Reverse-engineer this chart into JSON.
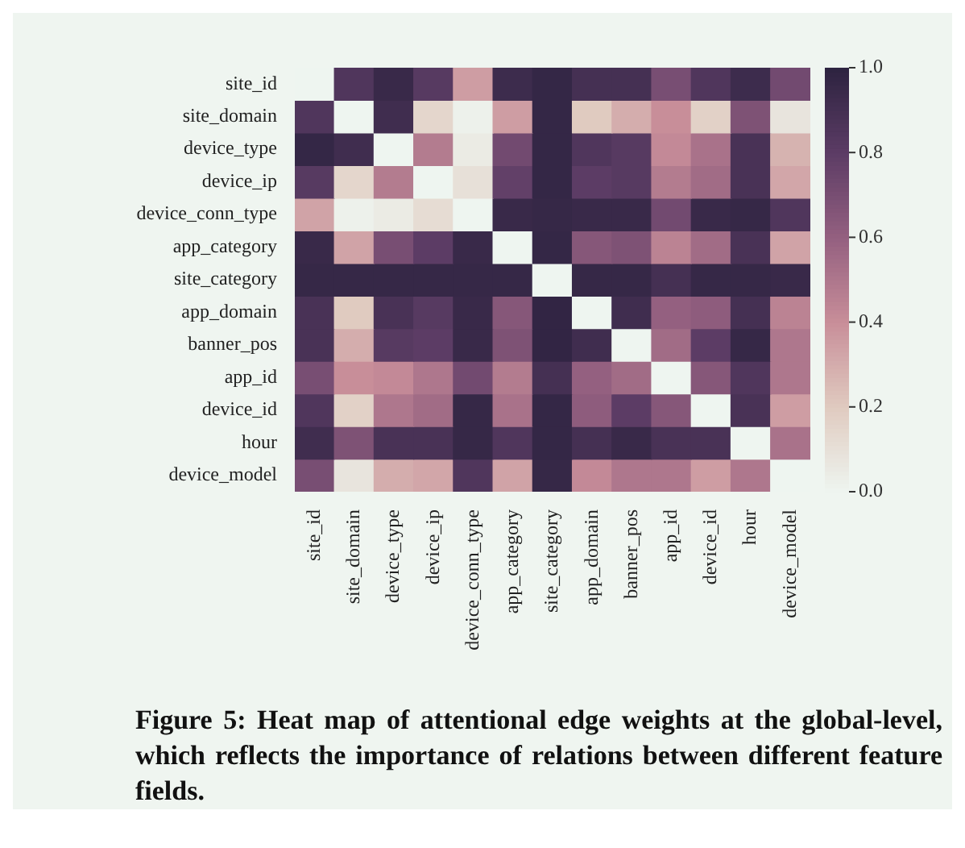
{
  "chart_data": {
    "type": "heatmap",
    "categories": [
      "site_id",
      "site_domain",
      "device_type",
      "device_ip",
      "device_conn_type",
      "app_category",
      "site_category",
      "app_domain",
      "banner_pos",
      "app_id",
      "device_id",
      "hour",
      "device_model"
    ],
    "y_categories": [
      "site_id",
      "site_domain",
      "device_type",
      "device_ip",
      "device_conn_type",
      "app_category",
      "site_category",
      "app_domain",
      "banner_pos",
      "app_id",
      "device_id",
      "hour",
      "device_model"
    ],
    "cells": [
      [
        0,
        0.85,
        0.95,
        0.82,
        0.35,
        0.93,
        0.97,
        0.9,
        0.9,
        0.7,
        0.85,
        0.93,
        0.72
      ],
      [
        0.85,
        0,
        0.92,
        0.15,
        0.02,
        0.35,
        0.97,
        0.2,
        0.3,
        0.4,
        0.17,
        0.68,
        0.08
      ],
      [
        0.97,
        0.92,
        0,
        0.48,
        0.05,
        0.72,
        0.97,
        0.85,
        0.82,
        0.42,
        0.52,
        0.88,
        0.28
      ],
      [
        0.82,
        0.15,
        0.48,
        0,
        0.1,
        0.78,
        0.97,
        0.8,
        0.82,
        0.48,
        0.55,
        0.88,
        0.32
      ],
      [
        0.33,
        0.02,
        0.05,
        0.12,
        0,
        0.95,
        0.96,
        0.95,
        0.95,
        0.72,
        0.95,
        0.96,
        0.85
      ],
      [
        0.95,
        0.33,
        0.7,
        0.8,
        0.95,
        0,
        0.97,
        0.65,
        0.68,
        0.45,
        0.55,
        0.88,
        0.33
      ],
      [
        0.96,
        0.96,
        0.96,
        0.96,
        0.96,
        0.96,
        0,
        0.96,
        0.96,
        0.9,
        0.96,
        0.96,
        0.95
      ],
      [
        0.88,
        0.2,
        0.88,
        0.82,
        0.95,
        0.65,
        0.98,
        0,
        0.92,
        0.6,
        0.62,
        0.9,
        0.45
      ],
      [
        0.88,
        0.3,
        0.82,
        0.8,
        0.95,
        0.68,
        0.98,
        0.92,
        0,
        0.55,
        0.8,
        0.96,
        0.5
      ],
      [
        0.7,
        0.4,
        0.42,
        0.5,
        0.72,
        0.48,
        0.9,
        0.6,
        0.55,
        0,
        0.65,
        0.85,
        0.5
      ],
      [
        0.85,
        0.17,
        0.5,
        0.55,
        0.96,
        0.52,
        0.97,
        0.62,
        0.8,
        0.65,
        0,
        0.88,
        0.35
      ],
      [
        0.92,
        0.68,
        0.88,
        0.88,
        0.96,
        0.85,
        0.97,
        0.9,
        0.95,
        0.88,
        0.88,
        0,
        0.52
      ],
      [
        0.7,
        0.08,
        0.3,
        0.32,
        0.85,
        0.33,
        0.96,
        0.42,
        0.5,
        0.5,
        0.35,
        0.5,
        0
      ]
    ],
    "clim": [
      0,
      1
    ],
    "cticks": [
      {
        "value": 0,
        "label": "0.0"
      },
      {
        "value": 0.2,
        "label": "0.2"
      },
      {
        "value": 0.4,
        "label": "0.4"
      },
      {
        "value": 0.6,
        "label": "0.6"
      },
      {
        "value": 0.8,
        "label": "0.8"
      },
      {
        "value": 1,
        "label": "1.0"
      }
    ],
    "annotations": [
      "Figure 5: Heat map of attentional edge weights at the global-level, which reflects the importance of relations between different feature fields."
    ]
  }
}
